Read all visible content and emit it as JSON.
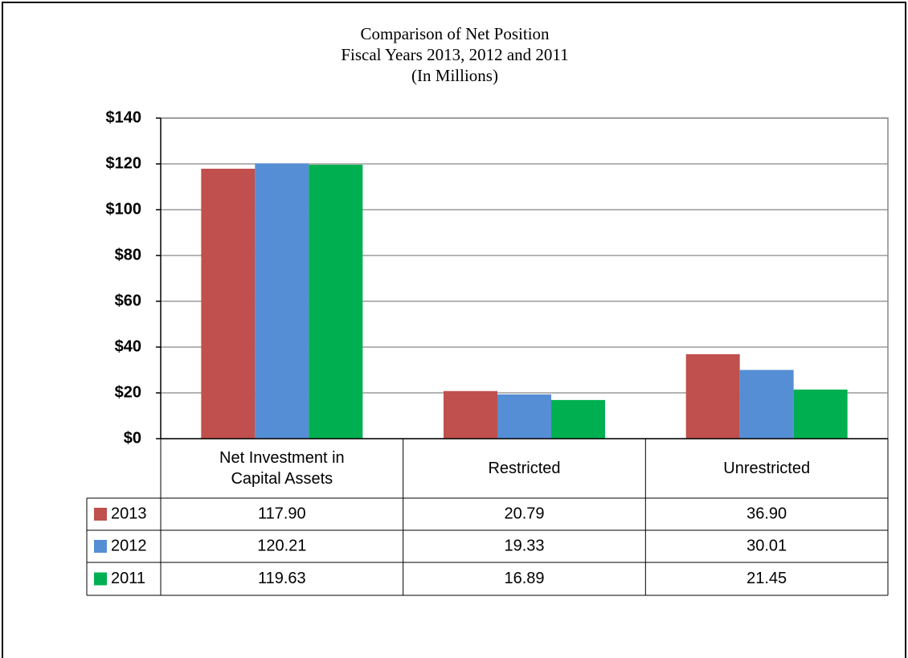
{
  "chart_data": {
    "type": "bar",
    "title": [
      "Comparison of Net Position",
      "Fiscal Years 2013, 2012 and 2011",
      "(In Millions)"
    ],
    "categories": [
      "Net Investment in Capital Assets",
      "Restricted",
      "Unrestricted"
    ],
    "series": [
      {
        "name": "2013",
        "color": "#c0504d",
        "values": [
          117.9,
          20.79,
          36.9
        ],
        "value_labels": [
          "117.90",
          "20.79",
          "36.90"
        ]
      },
      {
        "name": "2012",
        "color": "#558ed5",
        "values": [
          120.21,
          19.33,
          30.01
        ],
        "value_labels": [
          "120.21",
          "19.33",
          "30.01"
        ]
      },
      {
        "name": "2011",
        "color": "#00b050",
        "values": [
          119.63,
          16.89,
          21.45
        ],
        "value_labels": [
          "119.63",
          "16.89",
          "21.45"
        ]
      }
    ],
    "ylim": [
      0,
      140
    ],
    "yticks": [
      {
        "value": 0,
        "label": "$0"
      },
      {
        "value": 20,
        "label": "$20"
      },
      {
        "value": 40,
        "label": "$40"
      },
      {
        "value": 60,
        "label": "$60"
      },
      {
        "value": 80,
        "label": "$80"
      },
      {
        "value": 100,
        "label": "$100"
      },
      {
        "value": 120,
        "label": "$120"
      },
      {
        "value": 140,
        "label": "$140"
      }
    ],
    "grid": true
  }
}
